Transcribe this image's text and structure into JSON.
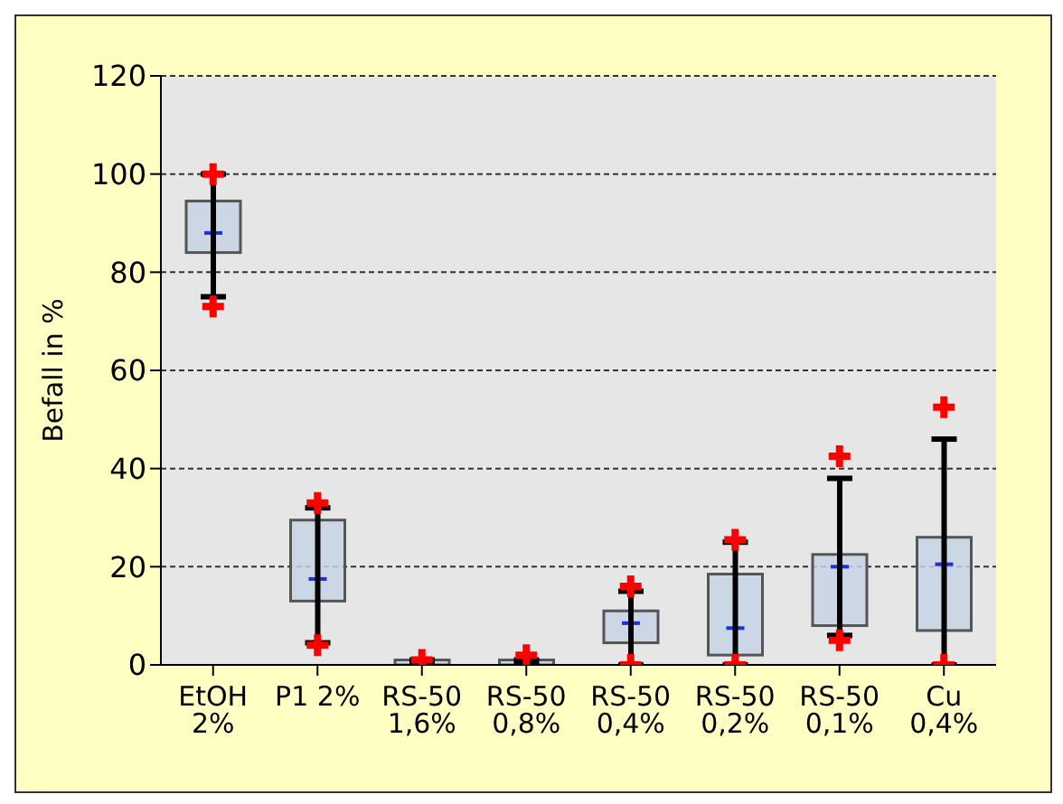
{
  "chart_data": {
    "type": "box",
    "ylabel": "Befall in %",
    "color": "#c5d3e4",
    "categories": [
      "EtOH 2%",
      "P1 2%",
      "RS-50 1,6%",
      "RS-50 0,8%",
      "RS-50 0,4%",
      "RS-50 0,2%",
      "RS-50 0,1%",
      "Cu 0,4%"
    ],
    "boxes": [
      {
        "low": 75,
        "q1": 84,
        "median": 88,
        "q3": 94.5,
        "high": 100
      },
      {
        "low": 4.5,
        "q1": 13,
        "median": 17.5,
        "q3": 29.5,
        "high": 32
      },
      {
        "low": 0,
        "q1": 0,
        "median": 0.5,
        "q3": 1,
        "high": 1
      },
      {
        "low": 0,
        "q1": 0,
        "median": 0.5,
        "q3": 1,
        "high": 1
      },
      {
        "low": 0,
        "q1": 4.5,
        "median": 8.5,
        "q3": 11,
        "high": 15
      },
      {
        "low": 0,
        "q1": 2,
        "median": 7.5,
        "q3": 18.5,
        "high": 25
      },
      {
        "low": 6,
        "q1": 8,
        "median": 20,
        "q3": 22.5,
        "high": 38
      },
      {
        "low": 0,
        "q1": 7,
        "median": 20.5,
        "q3": 26,
        "high": 46
      }
    ],
    "series": [
      {
        "type": "scatter",
        "color": "#ff0000",
        "x": [
          "EtOH 2%",
          "EtOH 2%",
          "P1 2%",
          "P1 2%",
          "RS-50 1,6%",
          "RS-50 0,8%",
          "RS-50 0,4%",
          "RS-50 0,4%",
          "RS-50 0,2%",
          "RS-50 0,2%",
          "RS-50 0,1%",
          "RS-50 0,1%",
          "Cu 0,4%",
          "Cu 0,4%"
        ],
        "values": [
          100,
          73,
          33,
          4,
          1,
          2,
          16,
          0,
          25.5,
          0,
          42.5,
          5,
          52.5,
          0
        ]
      }
    ],
    "marker": "cross",
    "ylim": [
      0,
      120
    ],
    "yticks": [
      0,
      20,
      40,
      60,
      80,
      100,
      120
    ],
    "grid": "y"
  }
}
